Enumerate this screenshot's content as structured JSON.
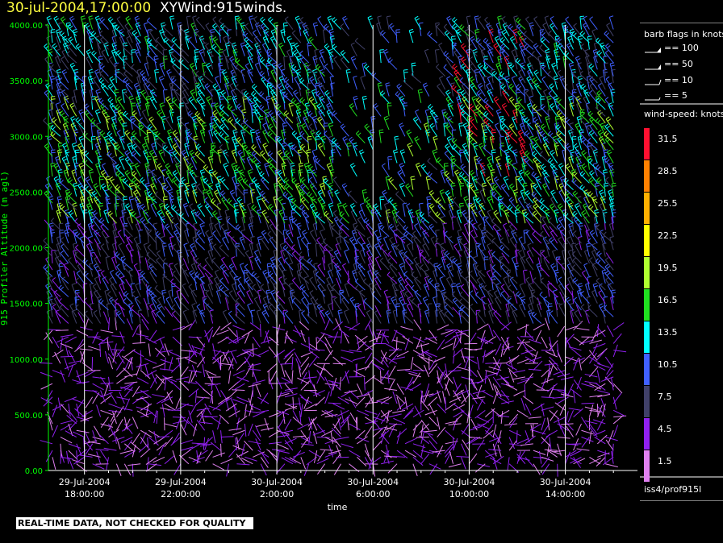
{
  "title": {
    "date_time": "30-jul-2004,17:00:00",
    "subtitle": "XYWind:915winds."
  },
  "chart_data": {
    "type": "scatter",
    "xlabel": "time",
    "ylabel": "915 Profiler Altitude (m agl)",
    "y_range": [
      0,
      4000
    ],
    "y_ticks": [
      "0.00",
      "500.00",
      "1000.00",
      "1500.00",
      "2000.00",
      "2500.00",
      "3000.00",
      "3500.00",
      "4000.00"
    ],
    "x_range": [
      "2004-07-29 16:30",
      "2004-07-30 17:00"
    ],
    "x_ticks": [
      {
        "date": "29-Jul-2004",
        "time": "18:00:00"
      },
      {
        "date": "29-Jul-2004",
        "time": "22:00:00"
      },
      {
        "date": "30-Jul-2004",
        "time": "2:00:00"
      },
      {
        "date": "30-Jul-2004",
        "time": "6:00:00"
      },
      {
        "date": "30-Jul-2004",
        "time": "10:00:00"
      },
      {
        "date": "30-Jul-2004",
        "time": "14:00:00"
      }
    ],
    "grid": "vertical lines at x ticks",
    "marks": "wind barbs every ~20 minutes, ~60 m vertical spacing",
    "profile_interval_minutes": 20,
    "level_spacing_m": 60,
    "speed_knots_by_layer": [
      {
        "altitude_m": [
          0,
          1300
        ],
        "speed_knots": 3
      },
      {
        "altitude_m": [
          1300,
          2200
        ],
        "speed_knots": 7.5
      },
      {
        "altitude_m": [
          2200,
          3300
        ],
        "speed_knots": 13.5
      },
      {
        "altitude_m": [
          3300,
          4000
        ],
        "speed_knots": 10.5
      }
    ]
  },
  "legend": {
    "barb_title": "barb flags in knots",
    "barb_keys": [
      "== 100",
      "== 50",
      "== 10",
      "== 5"
    ],
    "speed_title": "wind-speed: knots",
    "speed_bins": [
      {
        "label": "31.5",
        "color": "#ff1030"
      },
      {
        "label": "28.5",
        "color": "#ff8000"
      },
      {
        "label": "25.5",
        "color": "#ffb000"
      },
      {
        "label": "22.5",
        "color": "#ffff00"
      },
      {
        "label": "19.5",
        "color": "#b0ff30"
      },
      {
        "label": "16.5",
        "color": "#20e020"
      },
      {
        "label": "13.5",
        "color": "#00ffff"
      },
      {
        "label": "10.5",
        "color": "#4060ff"
      },
      {
        "label": "7.5",
        "color": "#404068"
      },
      {
        "label": "4.5",
        "color": "#9020f0"
      },
      {
        "label": "1.5",
        "color": "#e080f0"
      }
    ],
    "station": "iss4/prof915l"
  },
  "footer_note": "REAL-TIME DATA, NOT CHECKED FOR QUALITY",
  "colors": {
    "axis": "#00ff00",
    "grid": "#ffffff",
    "background": "#000000"
  }
}
